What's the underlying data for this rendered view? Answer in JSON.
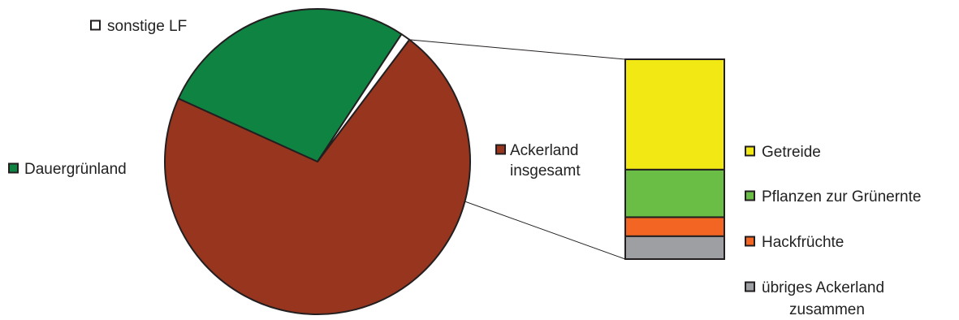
{
  "chart_data": [
    {
      "type": "pie",
      "title": "",
      "slices": [
        {
          "label": "Ackerland insgesamt",
          "label_lines": [
            "Ackerland",
            "insgesamt"
          ],
          "value": 71.5,
          "color": "#97351f"
        },
        {
          "label": "Dauergrünland",
          "label_lines": [
            "Dauergrünland"
          ],
          "value": 27.5,
          "color": "#0f8342"
        },
        {
          "label": "sonstige LF",
          "label_lines": [
            "sonstige LF"
          ],
          "value": 1.0,
          "color": "#ffffff"
        }
      ],
      "legend": "labels next to slices"
    },
    {
      "type": "bar",
      "stacked": true,
      "title": "",
      "series": [
        {
          "name": "Getreide",
          "label_lines": [
            "Getreide"
          ],
          "value": 58,
          "color": "#f2e814"
        },
        {
          "name": "Pflanzen zur Grünernte",
          "label_lines": [
            "Pflanzen zur Grünernte"
          ],
          "value": 25,
          "color": "#6abd45"
        },
        {
          "name": "Hackfrüchte",
          "label_lines": [
            "Hackfrüchte"
          ],
          "value": 10,
          "color": "#f26522"
        },
        {
          "name": "übriges Ackerland zusammen",
          "label_lines": [
            "übriges Ackerland",
            "zusammen"
          ],
          "value": 12,
          "color": "#9d9fa2"
        }
      ],
      "legend": "right"
    }
  ]
}
